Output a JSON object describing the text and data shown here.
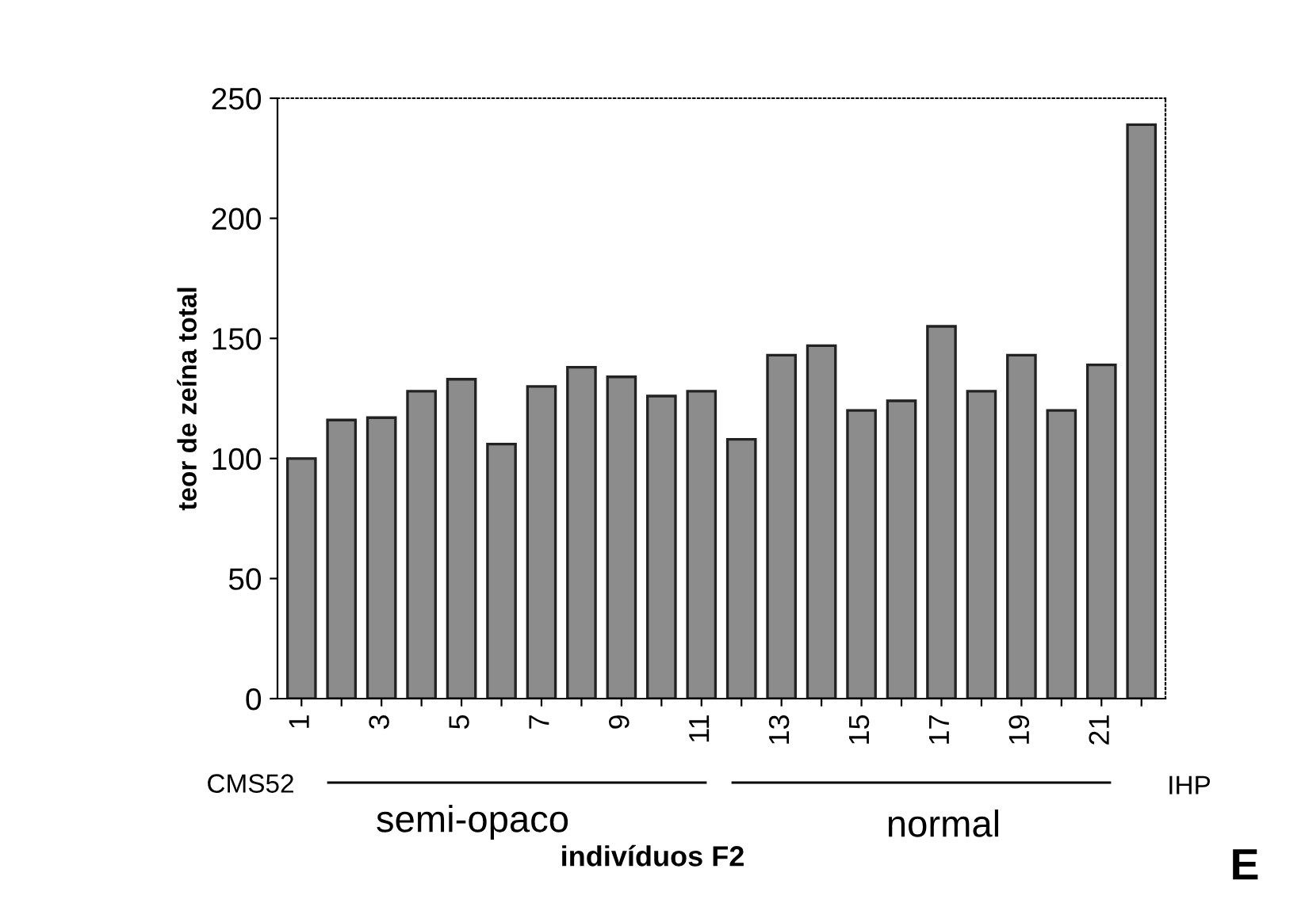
{
  "chart_data": {
    "type": "bar",
    "ylabel": "teor de zeína total",
    "xlabel": "indivíduos F2",
    "categories": [
      "1",
      null,
      "3",
      null,
      "5",
      null,
      "7",
      null,
      "9",
      null,
      "11",
      null,
      "13",
      null,
      "15",
      null,
      "17",
      null,
      "19",
      null,
      "21",
      null
    ],
    "values": [
      100,
      116,
      117,
      128,
      133,
      106,
      130,
      138,
      134,
      126,
      128,
      108,
      143,
      147,
      120,
      124,
      155,
      128,
      143,
      120,
      139,
      239
    ],
    "color": "#8c8c8c",
    "ylim": [
      0,
      250
    ],
    "yticks": [
      0,
      50,
      100,
      150,
      200,
      250
    ],
    "grid": false,
    "annotations": [
      "CMS52",
      "semi-opaco",
      "normal",
      "IHP",
      "E"
    ]
  }
}
